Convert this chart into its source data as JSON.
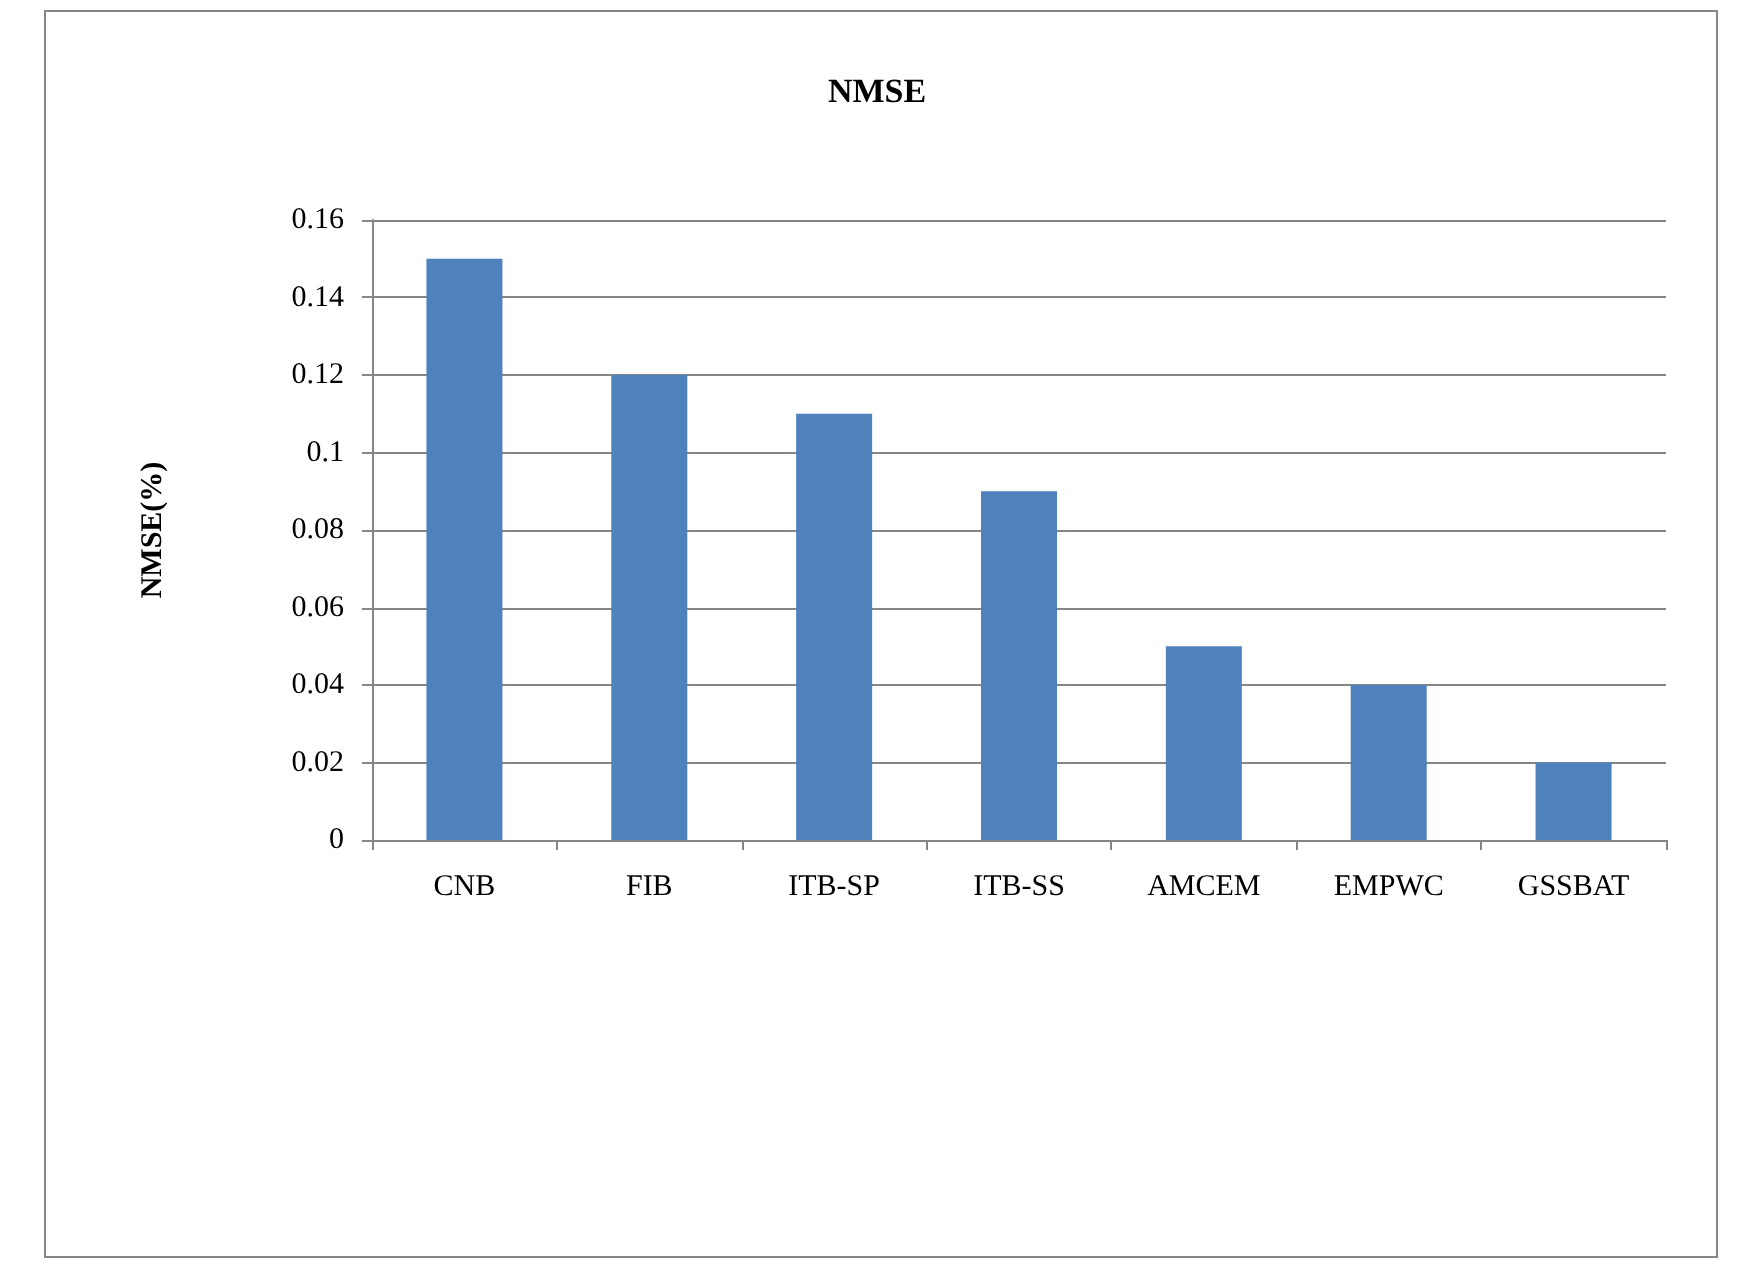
{
  "chart_data": {
    "type": "bar",
    "title": "NMSE",
    "ylabel": "NMSE(%)",
    "categories": [
      "CNB",
      "FIB",
      "ITB-SP",
      "ITB-SS",
      "AMCEM",
      "EMPWC",
      "GSSBAT"
    ],
    "values": [
      0.15,
      0.12,
      0.11,
      0.09,
      0.05,
      0.04,
      0.02
    ],
    "color": "#4f81bd",
    "ylim": [
      0,
      0.16
    ],
    "yticks": [
      0,
      0.02,
      0.04,
      0.06,
      0.08,
      0.1,
      0.12,
      0.14,
      0.16
    ],
    "grid": "y"
  }
}
